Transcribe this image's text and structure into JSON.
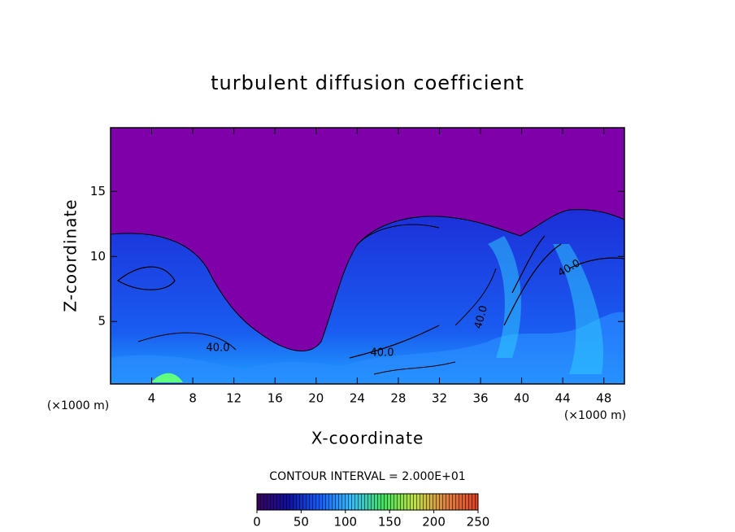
{
  "chart_data": {
    "type": "contour",
    "title": "turbulent diffusion coefficient",
    "x_label": "X-coordinate",
    "y_label": "Z-coordinate",
    "x_unit": "(×1000 m)",
    "y_unit": "(×1000 m)",
    "xlim": [
      0,
      50
    ],
    "xticks": [
      4,
      8,
      12,
      16,
      20,
      24,
      28,
      32,
      36,
      40,
      44,
      48
    ],
    "ylim": [
      0.2,
      19.9
    ],
    "yticks": [
      5,
      10,
      15
    ],
    "contour_labels": [
      "40.0",
      "40.0",
      "40.0",
      "40.0"
    ],
    "contour_interval": "CONTOUR INTERVAL = 2.000E+01",
    "colorbar": {
      "lim": [
        0,
        250
      ],
      "ticks": [
        0,
        50,
        100,
        150,
        200,
        250
      ],
      "colors": [
        "#3a0060",
        "#1010a0",
        "#1060ff",
        "#30c0ff",
        "#40e060",
        "#c0e040",
        "#e08040",
        "#e04020"
      ]
    }
  }
}
